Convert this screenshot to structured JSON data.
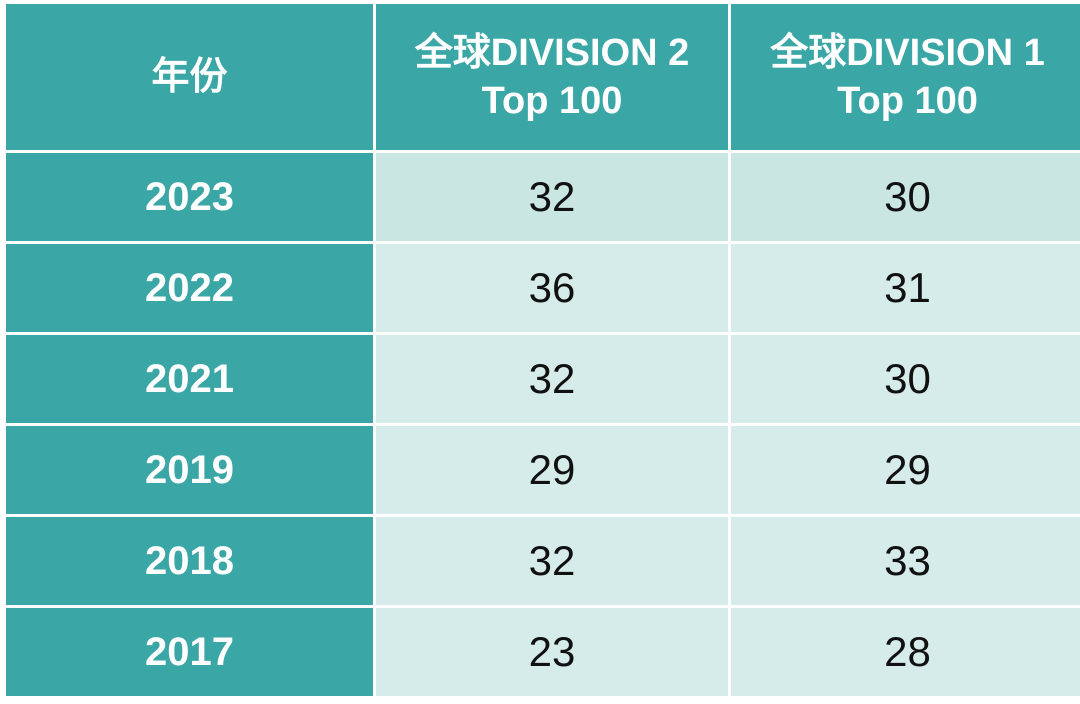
{
  "table": {
    "headers": {
      "year": "年份",
      "div2_line1": "全球DIVISION 2",
      "div2_line2": "Top 100",
      "div1_line1": "全球DIVISION 1",
      "div1_line2": "Top 100"
    },
    "rows": [
      {
        "year": "2023",
        "div2": "32",
        "div1": "30"
      },
      {
        "year": "2022",
        "div2": "36",
        "div1": "31"
      },
      {
        "year": "2021",
        "div2": "32",
        "div1": "30"
      },
      {
        "year": "2019",
        "div2": "29",
        "div1": "29"
      },
      {
        "year": "2018",
        "div2": "32",
        "div1": "33"
      },
      {
        "year": "2017",
        "div2": "23",
        "div1": "28"
      }
    ]
  },
  "colors": {
    "header_bg": "#3aa7a6",
    "cell_bg": "#d6ecea",
    "header_text": "#ffffff",
    "cell_text": "#111111"
  }
}
